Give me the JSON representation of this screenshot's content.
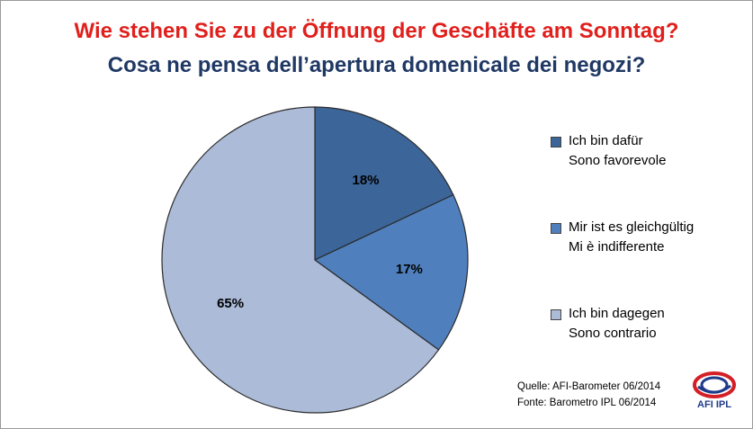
{
  "title_de": "Wie stehen Sie zu der Öffnung der Geschäfte am Sonntag?",
  "title_it": "Cosa ne pensa dell’apertura domenicale dei negozi?",
  "colors": {
    "title_de": "#e0201c",
    "title_it": "#1f3864"
  },
  "chart_data": {
    "type": "pie",
    "title": "Wie stehen Sie zu der Öffnung der Geschäfte am Sonntag? / Cosa ne pensa dell’apertura domenicale dei negozi?",
    "categories": [
      "Ich bin dafür / Sono favorevole",
      "Mir ist es gleichgültig / Mi è indifferente",
      "Ich bin dagegen / Sono contrario"
    ],
    "values": [
      18,
      17,
      65
    ],
    "unit": "%",
    "data_labels": [
      "18%",
      "17%",
      "65%"
    ],
    "colors": [
      "#3c6599",
      "#4f80bd",
      "#abbbd8"
    ],
    "start_angle_deg": 0,
    "direction": "clockwise",
    "legend_position": "right"
  },
  "legend": [
    {
      "de": "Ich bin dafür",
      "it": "Sono favorevole",
      "color": "#3c6599"
    },
    {
      "de": "Mir ist es gleichgültig",
      "it": "Mi è indifferente",
      "color": "#4f80bd"
    },
    {
      "de": "Ich bin dagegen",
      "it": "Sono contrario",
      "color": "#abbbd8"
    }
  ],
  "source": {
    "de": "Quelle: AFI-Barometer 06/2014",
    "it": "Fonte: Barometro IPL 06/2014"
  },
  "logo": {
    "text": "AFI IPL"
  }
}
